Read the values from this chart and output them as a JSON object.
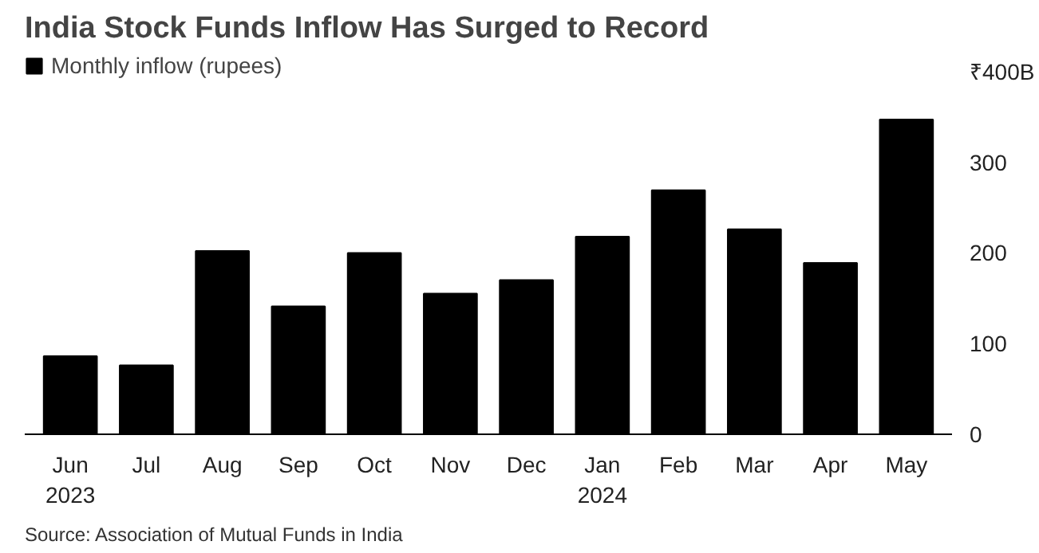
{
  "chart_data": {
    "type": "bar",
    "title": "India Stock Funds Inflow Has Surged to Record",
    "categories": [
      "Jun\n2023",
      "Jul",
      "Aug",
      "Sep",
      "Oct",
      "Nov",
      "Dec",
      "Jan\n2024",
      "Feb",
      "Mar",
      "Apr",
      "May"
    ],
    "series": [
      {
        "name": "Monthly inflow (rupees)",
        "color": "#000000",
        "values": [
          86,
          76,
          202,
          141,
          200,
          155,
          170,
          218,
          269,
          226,
          189,
          347
        ]
      }
    ],
    "ylim": [
      0,
      420
    ],
    "yticks": [
      0,
      100,
      200,
      300,
      {
        "value": 400,
        "label": "₹400B"
      }
    ],
    "grid": false,
    "legend": "top left",
    "annotations": [
      "Source: Association of Mutual Funds in India"
    ]
  }
}
